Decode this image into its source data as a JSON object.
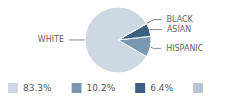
{
  "chart_data": {
    "type": "pie",
    "categories": [
      "WHITE",
      "HISPANIC",
      "ASIAN",
      "BLACK"
    ],
    "values": [
      83.3,
      10.2,
      6.4,
      0.1
    ],
    "value_labels": [
      "83.3%",
      "10.2%",
      "6.4%",
      null
    ],
    "colors": [
      "#cdd8e2",
      "#7b98b3",
      "#3b6182",
      "#b4c4d2"
    ],
    "legend": "bottom"
  }
}
